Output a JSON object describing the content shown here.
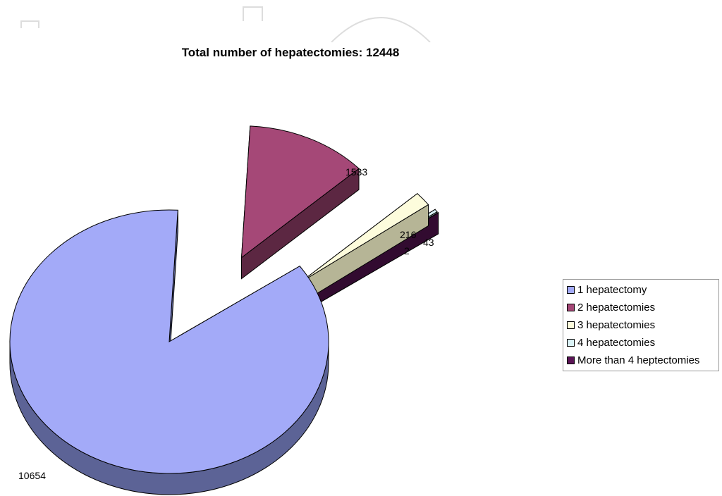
{
  "chart_data": {
    "type": "pie",
    "title": "Total number of hepatectomies: 12448",
    "categories": [
      "1 hepatectomy",
      "2 hepatectomies",
      "3 hepatectomies",
      "4 hepatectomies",
      "More than 4 heptectomies"
    ],
    "values": [
      10654,
      1533,
      216,
      43,
      2
    ],
    "data_labels": [
      "10654",
      "1533",
      "216",
      "43",
      "2"
    ],
    "colors": [
      "#a3aaf8",
      "#a54877",
      "#fdfcdc",
      "#dbf3f7",
      "#5b1456"
    ],
    "side_colors": [
      "#5c6396",
      "#5c2742",
      "#b6b596",
      "#7f9a98",
      "#320b30"
    ],
    "style": "3d-exploded",
    "legend_position": "right",
    "grid": false
  }
}
